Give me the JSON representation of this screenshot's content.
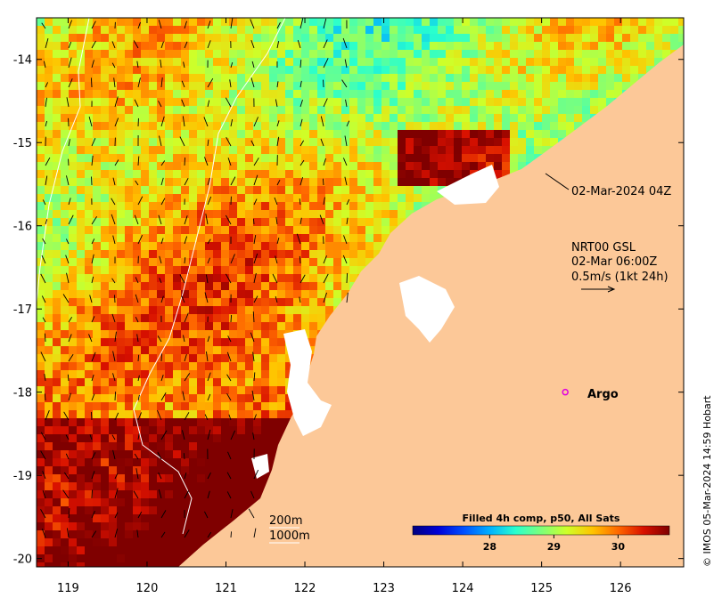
{
  "map": {
    "lon_range": [
      118.6,
      126.8
    ],
    "lat_range": [
      -20.1,
      -13.5
    ],
    "lon_ticks": [
      "119",
      "120",
      "121",
      "122",
      "123",
      "124",
      "125",
      "126"
    ],
    "lat_ticks": [
      "-14",
      "-15",
      "-16",
      "-17",
      "-18",
      "-19",
      "-20"
    ],
    "land_color": "#fcc898",
    "nodata_color": "#ffffff"
  },
  "annotations": {
    "pass_time": "02-Mar-2024 04Z",
    "product_line1": "NRT00 GSL",
    "product_line2": "02-Mar 06:00Z",
    "current_scale": "0.5m/s (1kt 24h)",
    "argo_label": "Argo",
    "contour_200": "200m",
    "contour_1000": "1000m"
  },
  "colorbar": {
    "title": "Filled 4h comp, p50, All Sats",
    "range": [
      26.8,
      30.8
    ],
    "ticks": [
      "28",
      "29",
      "30"
    ],
    "colors": [
      "#00007f",
      "#0000d8",
      "#0050ff",
      "#00b0ff",
      "#29ffce",
      "#7dff7a",
      "#ceff29",
      "#ffc400",
      "#ff6800",
      "#d81000",
      "#7f0000"
    ]
  },
  "argo": {
    "lon": 125.3,
    "lat": -18.0,
    "color": "#e000e0"
  },
  "credit": "© IMOS 05-Mar-2024 14:59 Hobart"
}
